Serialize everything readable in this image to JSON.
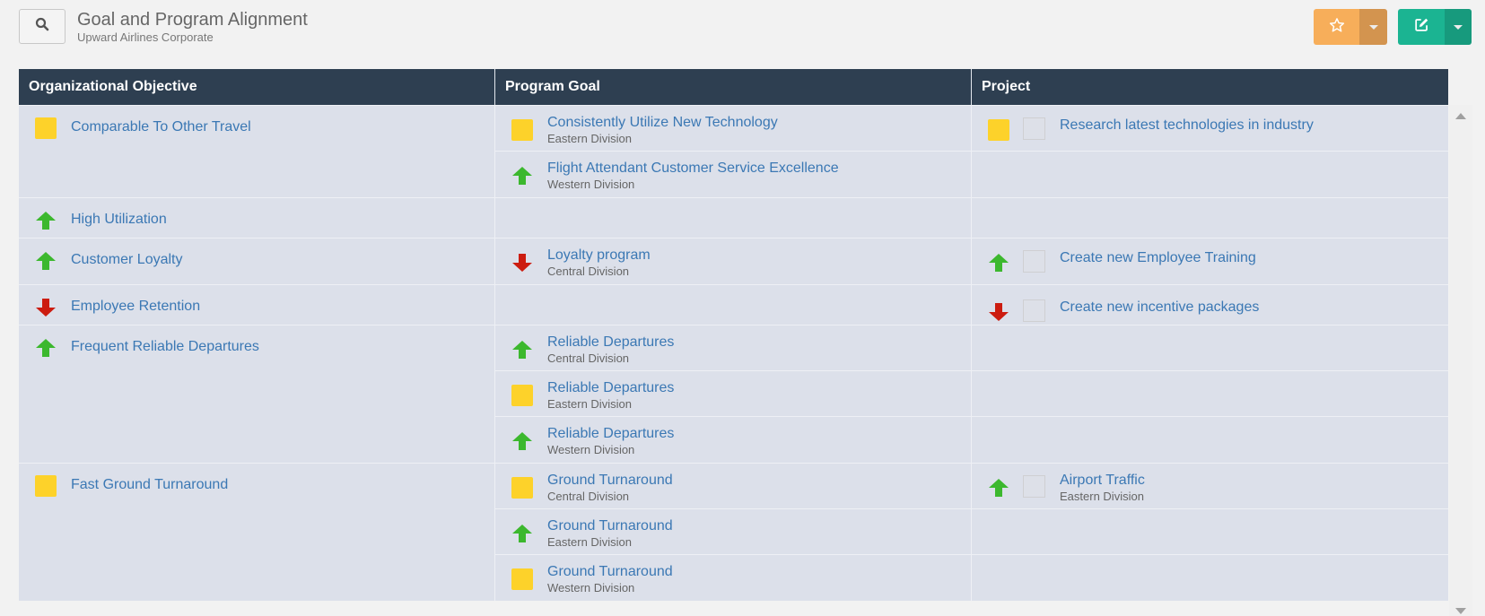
{
  "header": {
    "title": "Goal and Program Alignment",
    "subtitle": "Upward Airlines Corporate",
    "search_icon": "search-icon",
    "favorite_icon": "star-icon",
    "edit_icon": "edit-icon"
  },
  "colors": {
    "header_bg": "#2e3f51",
    "row_bg": "#dce0ea",
    "link": "#3b78b4",
    "status_yellow": "#fdd22a",
    "status_up": "#3cb82e",
    "status_down": "#cc1c10",
    "fav_button": "#f7ae5a",
    "edit_button": "#1bb492"
  },
  "table": {
    "columns": [
      "Organizational Objective",
      "Program Goal",
      "Project"
    ],
    "groups": [
      {
        "objective": {
          "label": "Comparable To Other Travel",
          "status": "yellow"
        },
        "rows": [
          {
            "goal": {
              "label": "Consistently Utilize New Technology",
              "division": "Eastern Division",
              "status": "yellow"
            },
            "project": {
              "label": "Research latest technologies in industry",
              "division": "",
              "status": "yellow"
            }
          },
          {
            "goal": {
              "label": "Flight Attendant Customer Service Excellence",
              "division": "Western Division",
              "status": "up"
            },
            "project": null
          }
        ]
      },
      {
        "objective": {
          "label": "High Utilization",
          "status": "up"
        },
        "rows": [
          {
            "goal": null,
            "project": null
          }
        ]
      },
      {
        "objective": {
          "label": "Customer Loyalty",
          "status": "up"
        },
        "rows": [
          {
            "goal": {
              "label": "Loyalty program",
              "division": "Central Division",
              "status": "down"
            },
            "project": {
              "label": "Create new Employee Training",
              "division": "",
              "status": "up"
            }
          }
        ]
      },
      {
        "objective": {
          "label": "Employee Retention",
          "status": "down"
        },
        "rows": [
          {
            "goal": null,
            "project": {
              "label": "Create new incentive packages",
              "division": "",
              "status": "down"
            }
          }
        ]
      },
      {
        "objective": {
          "label": "Frequent Reliable Departures",
          "status": "up"
        },
        "rows": [
          {
            "goal": {
              "label": "Reliable Departures",
              "division": "Central Division",
              "status": "up"
            },
            "project": null
          },
          {
            "goal": {
              "label": "Reliable Departures",
              "division": "Eastern Division",
              "status": "yellow"
            },
            "project": null
          },
          {
            "goal": {
              "label": "Reliable Departures",
              "division": "Western Division",
              "status": "up"
            },
            "project": null
          }
        ]
      },
      {
        "objective": {
          "label": "Fast Ground Turnaround",
          "status": "yellow"
        },
        "rows": [
          {
            "goal": {
              "label": "Ground Turnaround",
              "division": "Central Division",
              "status": "yellow"
            },
            "project": {
              "label": "Airport Traffic",
              "division": "Eastern Division",
              "status": "up"
            }
          },
          {
            "goal": {
              "label": "Ground Turnaround",
              "division": "Eastern Division",
              "status": "up"
            },
            "project": null
          },
          {
            "goal": {
              "label": "Ground Turnaround",
              "division": "Western Division",
              "status": "yellow"
            },
            "project": null
          }
        ]
      }
    ]
  }
}
